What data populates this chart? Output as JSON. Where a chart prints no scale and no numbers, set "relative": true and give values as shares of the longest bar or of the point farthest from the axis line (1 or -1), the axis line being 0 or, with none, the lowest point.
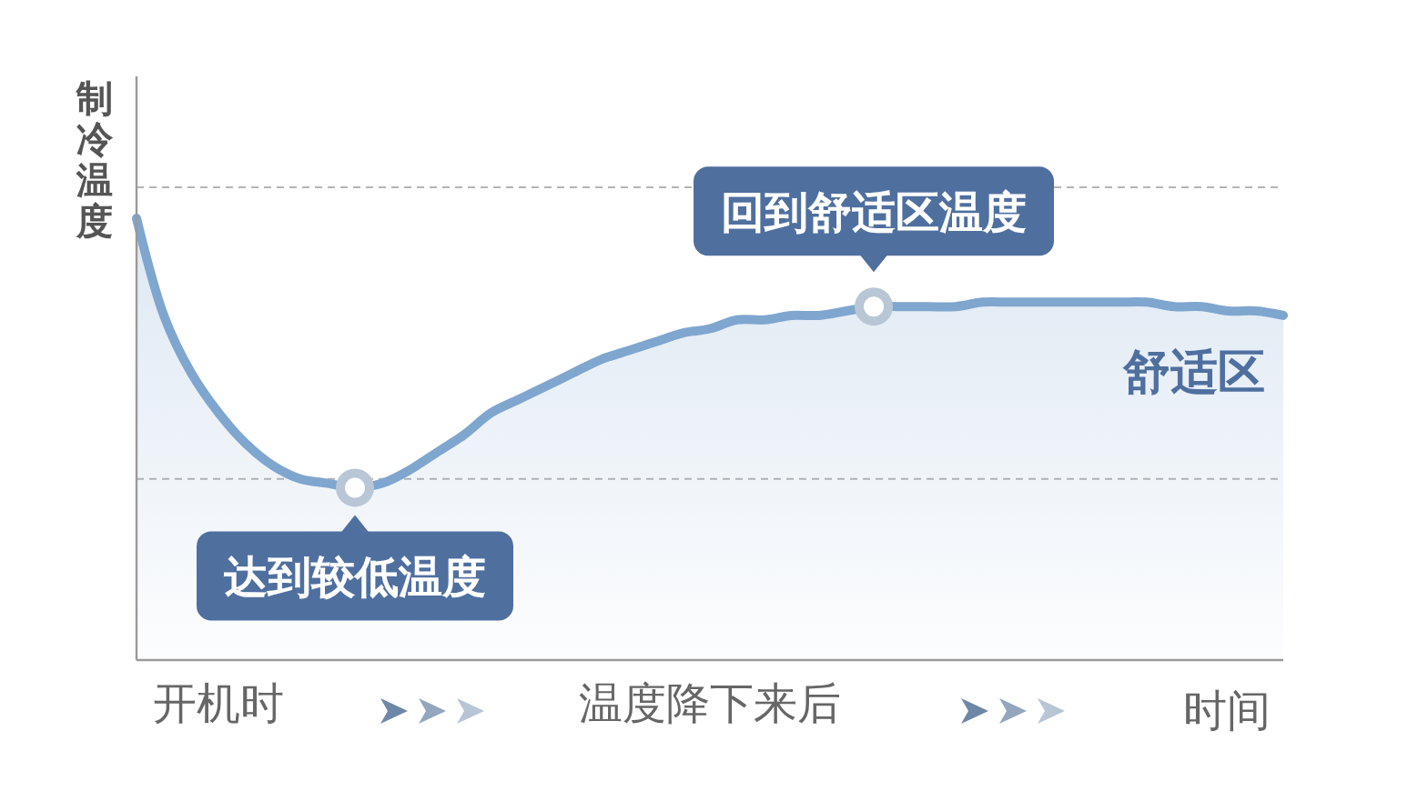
{
  "chart_data": {
    "type": "area",
    "relative": true,
    "ylabel": "制冷温度",
    "xlabel": "时间",
    "categories": [
      null,
      null,
      null,
      "开机时",
      null,
      null,
      null,
      null,
      null,
      null,
      null,
      null,
      null,
      null,
      null,
      null,
      null,
      null,
      null,
      null,
      null,
      "温度降下来后",
      null,
      null,
      null,
      null,
      null,
      null,
      null,
      null,
      null,
      null,
      null,
      null,
      null,
      null,
      null,
      null,
      null,
      null,
      null,
      null,
      null
    ],
    "values": [
      1.0,
      0.78,
      0.65,
      0.56,
      0.49,
      0.44,
      0.41,
      0.4,
      0.39,
      0.4,
      0.43,
      0.47,
      0.51,
      0.56,
      0.59,
      0.62,
      0.65,
      0.68,
      0.7,
      0.72,
      0.74,
      0.75,
      0.77,
      0.77,
      0.78,
      0.78,
      0.79,
      0.8,
      0.8,
      0.8,
      0.8,
      0.81,
      0.81,
      0.81,
      0.81,
      0.81,
      0.81,
      0.81,
      0.8,
      0.8,
      0.79,
      0.79,
      0.78
    ],
    "color": "#7fa6cf",
    "ref_lines": [
      {
        "axis": "y",
        "value": 1.07,
        "color": "#b4b4b4",
        "line_style": "dashed"
      },
      {
        "axis": "y",
        "value": 0.41,
        "color": "#b4b4b4",
        "line_style": "dashed"
      }
    ],
    "annotations": [
      {
        "text": "达到较低温度",
        "y": 0.39
      },
      {
        "text": "回到舒适区温度",
        "y": 0.8
      },
      "舒适区"
    ]
  }
}
